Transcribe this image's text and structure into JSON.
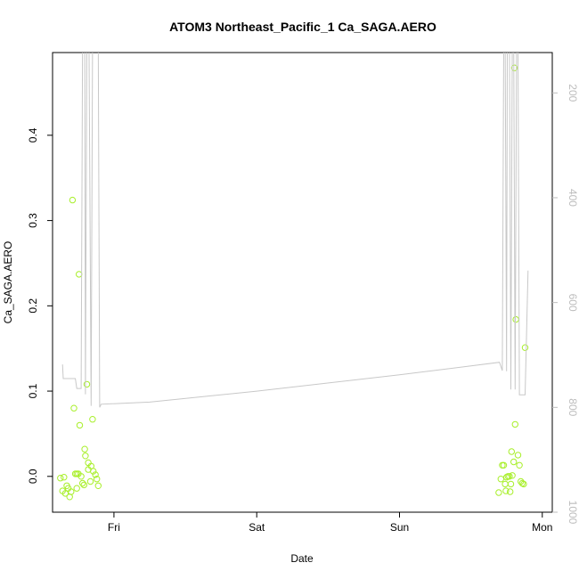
{
  "chart_data": {
    "type": "scatter",
    "title": "ATOM3 Northeast_Pacific_1 Ca_SAGA.AERO",
    "xlabel": "Date",
    "ylabel": "Ca_SAGA.AERO",
    "x_units": "days (0 = Fri 00:00)",
    "xlim": [
      -0.43,
      3.07
    ],
    "ylim": [
      -0.042,
      0.497
    ],
    "x_ticks": [
      {
        "value": 0,
        "label": "Fri"
      },
      {
        "value": 1,
        "label": "Sat"
      },
      {
        "value": 2,
        "label": "Sun"
      },
      {
        "value": 3,
        "label": "Mon"
      }
    ],
    "y_ticks": [
      {
        "value": 0.0,
        "label": "0.0"
      },
      {
        "value": 0.1,
        "label": "0.1"
      },
      {
        "value": 0.2,
        "label": "0.2"
      },
      {
        "value": 0.3,
        "label": "0.3"
      },
      {
        "value": 0.4,
        "label": "0.4"
      }
    ],
    "right_axis": {
      "label": "",
      "reversed": true,
      "lim": [
        123,
        1000
      ],
      "ticks": [
        {
          "value": 200,
          "label": "200"
        },
        {
          "value": 400,
          "label": "400"
        },
        {
          "value": 600,
          "label": "600"
        },
        {
          "value": 800,
          "label": "800"
        },
        {
          "value": 1000,
          "label": "1000"
        }
      ]
    },
    "series": [
      {
        "kind": "points",
        "color": "#a8ef2a",
        "points": [
          [
            -0.375,
            -0.002
          ],
          [
            -0.36,
            -0.017
          ],
          [
            -0.35,
            -0.001
          ],
          [
            -0.34,
            -0.02
          ],
          [
            -0.33,
            -0.011
          ],
          [
            -0.32,
            -0.014
          ],
          [
            -0.31,
            -0.024
          ],
          [
            -0.3,
            -0.018
          ],
          [
            -0.29,
            0.324
          ],
          [
            -0.28,
            0.08
          ],
          [
            -0.27,
            0.003
          ],
          [
            -0.26,
            0.003
          ],
          [
            -0.26,
            -0.014
          ],
          [
            -0.25,
            0.003
          ],
          [
            -0.2,
            0.024
          ],
          [
            -0.245,
            0.237
          ],
          [
            -0.24,
            0.06
          ],
          [
            -0.23,
            0.0
          ],
          [
            -0.22,
            -0.008
          ],
          [
            -0.21,
            -0.01
          ],
          [
            -0.205,
            0.032
          ],
          [
            -0.19,
            0.108
          ],
          [
            -0.18,
            0.016
          ],
          [
            -0.18,
            0.008
          ],
          [
            -0.165,
            -0.006
          ],
          [
            -0.16,
            0.012
          ],
          [
            -0.15,
            0.067
          ],
          [
            -0.145,
            0.006
          ],
          [
            -0.13,
            0.002
          ],
          [
            -0.12,
            -0.003
          ],
          [
            -0.11,
            -0.011
          ],
          [
            2.695,
            -0.019
          ],
          [
            2.71,
            -0.003
          ],
          [
            2.72,
            0.013
          ],
          [
            2.73,
            0.013
          ],
          [
            2.74,
            -0.009
          ],
          [
            2.745,
            -0.017
          ],
          [
            2.75,
            -0.001
          ],
          [
            2.76,
            0.0
          ],
          [
            2.77,
            0.0
          ],
          [
            2.775,
            -0.018
          ],
          [
            2.78,
            -0.009
          ],
          [
            2.785,
            0.029
          ],
          [
            2.79,
            0.001
          ],
          [
            2.8,
            0.017
          ],
          [
            2.805,
            0.479
          ],
          [
            2.81,
            0.061
          ],
          [
            2.815,
            0.184
          ],
          [
            2.83,
            0.025
          ],
          [
            2.84,
            0.013
          ],
          [
            2.85,
            -0.006
          ],
          [
            2.86,
            -0.008
          ],
          [
            2.87,
            -0.009
          ],
          [
            2.88,
            0.151
          ]
        ]
      },
      {
        "kind": "line",
        "axis": "right",
        "color": "#c8c8c8",
        "points": [
          [
            -0.36,
            718
          ],
          [
            -0.355,
            745
          ],
          [
            -0.27,
            745
          ],
          [
            -0.26,
            764
          ],
          [
            -0.23,
            764
          ],
          [
            -0.22,
            100
          ],
          [
            -0.205,
            100
          ],
          [
            -0.2,
            775
          ],
          [
            -0.19,
            100
          ],
          [
            -0.175,
            100
          ],
          [
            -0.16,
            797
          ],
          [
            -0.15,
            100
          ],
          [
            -0.11,
            100
          ],
          [
            -0.1,
            800
          ],
          [
            -0.09,
            794
          ],
          [
            0.25,
            790
          ],
          [
            1.0,
            769
          ],
          [
            2.0,
            738
          ],
          [
            2.7,
            714
          ],
          [
            2.72,
            730
          ],
          [
            2.73,
            100
          ],
          [
            2.74,
            100
          ],
          [
            2.75,
            731
          ],
          [
            2.755,
            100
          ],
          [
            2.77,
            100
          ],
          [
            2.78,
            766
          ],
          [
            2.79,
            100
          ],
          [
            2.8,
            100
          ],
          [
            2.81,
            766
          ],
          [
            2.82,
            100
          ],
          [
            2.83,
            100
          ],
          [
            2.84,
            776
          ],
          [
            2.88,
            776
          ],
          [
            2.9,
            539
          ]
        ]
      }
    ],
    "legend": "none",
    "grid": false
  }
}
